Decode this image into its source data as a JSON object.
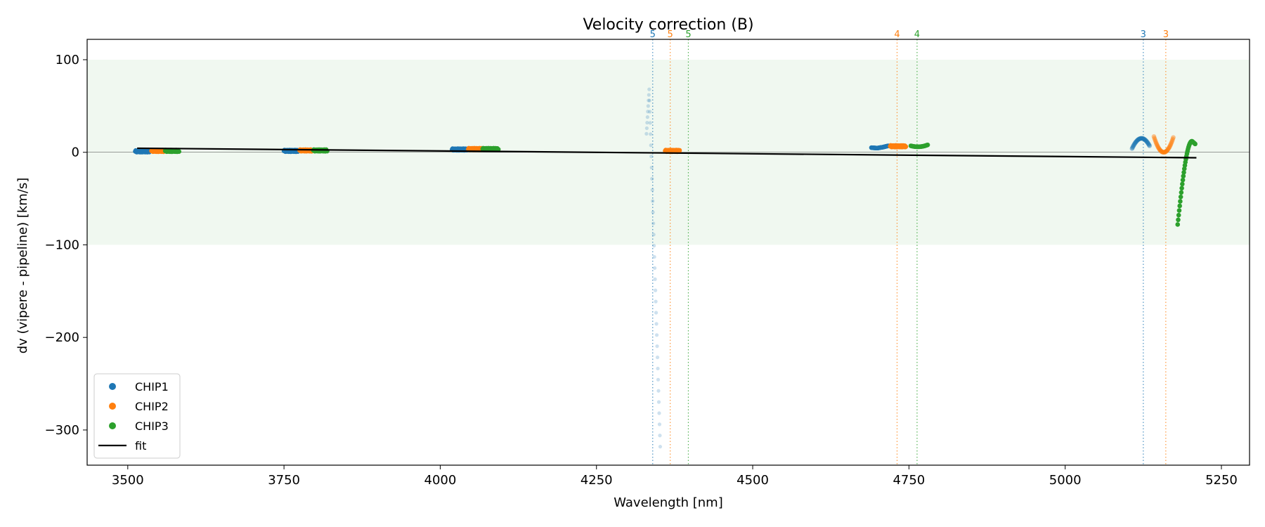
{
  "chart_data": {
    "type": "scatter",
    "title": "Velocity correction (B)",
    "xlabel": "Wavelength [nm]",
    "ylabel": "dv (vipere - pipeline) [km/s]",
    "xlim": [
      3435,
      5295
    ],
    "ylim": [
      -338,
      122
    ],
    "xticks": [
      3500,
      3750,
      4000,
      4250,
      4500,
      4750,
      5000,
      5250
    ],
    "yticks": [
      100,
      0,
      -100,
      -200,
      -300
    ],
    "shaded_band": {
      "y_from": -100,
      "y_to": 100,
      "color": "#2ca02c"
    },
    "zero_line": true,
    "legend": {
      "position": "lower-left",
      "entries": [
        {
          "label": "CHIP1",
          "kind": "marker",
          "color": "#1f77b4"
        },
        {
          "label": "CHIP2",
          "kind": "marker",
          "color": "#ff7f0e"
        },
        {
          "label": "CHIP3",
          "kind": "marker",
          "color": "#2ca02c"
        },
        {
          "label": "fit",
          "kind": "line",
          "color": "#000000"
        }
      ]
    },
    "fit": {
      "x": [
        3515,
        5210
      ],
      "y": [
        4.4,
        -5.9
      ],
      "color": "#000000"
    },
    "order_markers": [
      {
        "x": 4340,
        "label": "5",
        "color": "#1f77b4"
      },
      {
        "x": 4368,
        "label": "5",
        "color": "#ff7f0e"
      },
      {
        "x": 4397,
        "label": "5",
        "color": "#2ca02c"
      },
      {
        "x": 4731,
        "label": "4",
        "color": "#ff7f0e"
      },
      {
        "x": 4763,
        "label": "4",
        "color": "#2ca02c"
      },
      {
        "x": 5125,
        "label": "3",
        "color": "#1f77b4"
      },
      {
        "x": 5161,
        "label": "3",
        "color": "#ff7f0e"
      }
    ],
    "series": [
      {
        "name": "CHIP1",
        "color": "#1f77b4",
        "segments": [
          {
            "shape": "flat",
            "x0": 3512,
            "x1": 3536,
            "y": 1.0,
            "alpha": 1.0
          },
          {
            "shape": "flat",
            "x0": 3750,
            "x1": 3773,
            "y": 1.5,
            "alpha": 1.0
          },
          {
            "shape": "flat",
            "x0": 4019,
            "x1": 4043,
            "y": 3.0,
            "alpha": 1.0
          },
          {
            "shape": "spike",
            "x0": 4330,
            "x1": 4352,
            "y": [
              20,
              68,
              10,
              -318
            ],
            "alpha": 0.22
          },
          {
            "shape": "curve",
            "x0": 4690,
            "x1": 4717,
            "y": [
              5,
              4.5,
              5.5,
              7
            ],
            "alpha": 1.0
          },
          {
            "shape": "arc",
            "x0": 5107,
            "x1": 5135,
            "y": [
              4,
              15,
              7
            ],
            "alpha": 0.45
          }
        ]
      },
      {
        "name": "CHIP2",
        "color": "#ff7f0e",
        "segments": [
          {
            "shape": "flat",
            "x0": 3538,
            "x1": 3558,
            "y": 1.5,
            "alpha": 1.0
          },
          {
            "shape": "flat",
            "x0": 3775,
            "x1": 3795,
            "y": 2.0,
            "alpha": 1.0
          },
          {
            "shape": "flat",
            "x0": 4045,
            "x1": 4066,
            "y": 3.5,
            "alpha": 1.0
          },
          {
            "shape": "flat",
            "x0": 4360,
            "x1": 4383,
            "y": 1.5,
            "alpha": 1.0
          },
          {
            "shape": "flat",
            "x0": 4720,
            "x1": 4745,
            "y": 6.5,
            "alpha": 1.0
          },
          {
            "shape": "valley",
            "x0": 5142,
            "x1": 5173,
            "y": [
              17,
              0,
              16
            ],
            "alpha": 0.45
          }
        ]
      },
      {
        "name": "CHIP3",
        "color": "#2ca02c",
        "segments": [
          {
            "shape": "flat",
            "x0": 3560,
            "x1": 3582,
            "y": 1.5,
            "alpha": 1.0
          },
          {
            "shape": "flat",
            "x0": 3797,
            "x1": 3819,
            "y": 2.0,
            "alpha": 1.0
          },
          {
            "shape": "flat",
            "x0": 4068,
            "x1": 4093,
            "y": 3.5,
            "alpha": 1.0
          },
          {
            "shape": "arc",
            "x0": 4753,
            "x1": 4780,
            "y": [
              7,
              6,
              8
            ],
            "alpha": 0.9
          },
          {
            "shape": "rise",
            "x0": 5180,
            "x1": 5208,
            "y": [
              -78,
              12,
              9
            ],
            "alpha": 1.0
          }
        ]
      }
    ]
  }
}
